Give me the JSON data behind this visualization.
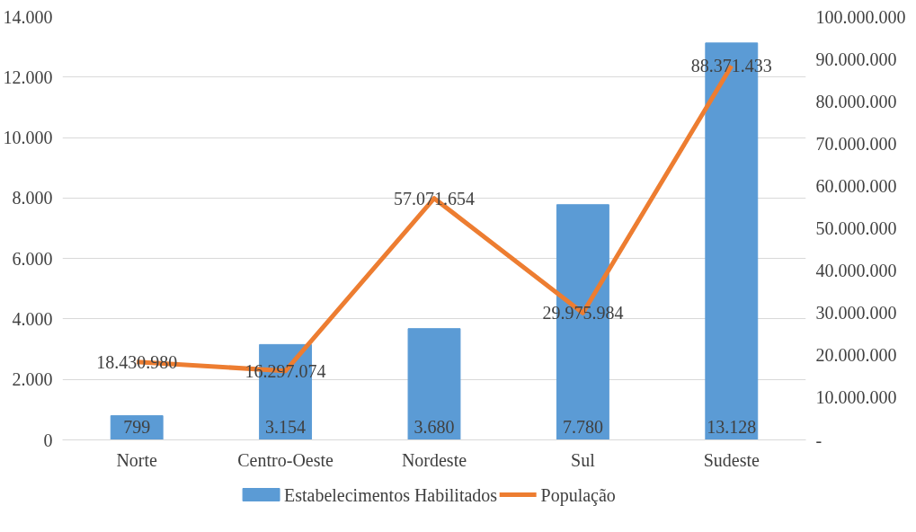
{
  "chart_data": {
    "type": "bar",
    "categories": [
      "Norte",
      "Centro-Oeste",
      "Nordeste",
      "Sul",
      "Sudeste"
    ],
    "series": [
      {
        "name": "Estabelecimentos Habilitados",
        "color": "#5b9bd5",
        "values": [
          799,
          3154,
          3680,
          7780,
          13128
        ],
        "value_labels": [
          "799",
          "3.154",
          "3.680",
          "7.780",
          "13.128"
        ]
      },
      {
        "name": "População",
        "type": "line",
        "axis": "y2",
        "color": "#ed7d31",
        "values": [
          18430980,
          16297074,
          57071654,
          29975984,
          88371433
        ],
        "value_labels": [
          "18.430.980",
          "16.297.074",
          "57.071.654",
          "29.975.984",
          "88.371.433"
        ]
      }
    ],
    "ylim": [
      0,
      14000
    ],
    "yticks": [
      {
        "value": 0,
        "label": "0"
      },
      {
        "value": 2000,
        "label": "2.000"
      },
      {
        "value": 4000,
        "label": "4.000"
      },
      {
        "value": 6000,
        "label": "6.000"
      },
      {
        "value": 8000,
        "label": "8.000"
      },
      {
        "value": 10000,
        "label": "10.000"
      },
      {
        "value": 12000,
        "label": "12.000"
      },
      {
        "value": 14000,
        "label": "14.000"
      }
    ],
    "y2lim": [
      0,
      100000000
    ],
    "y2ticks": [
      {
        "value": 0,
        "label": "-"
      },
      {
        "value": 10000000,
        "label": "10.000.000"
      },
      {
        "value": 20000000,
        "label": "20.000.000"
      },
      {
        "value": 30000000,
        "label": "30.000.000"
      },
      {
        "value": 40000000,
        "label": "40.000.000"
      },
      {
        "value": 50000000,
        "label": "50.000.000"
      },
      {
        "value": 60000000,
        "label": "60.000.000"
      },
      {
        "value": 70000000,
        "label": "70.000.000"
      },
      {
        "value": 80000000,
        "label": "80.000.000"
      },
      {
        "value": 90000000,
        "label": "90.000.000"
      },
      {
        "value": 100000000,
        "label": "100.000.000"
      }
    ],
    "grid": "y",
    "legend": "bottom"
  }
}
